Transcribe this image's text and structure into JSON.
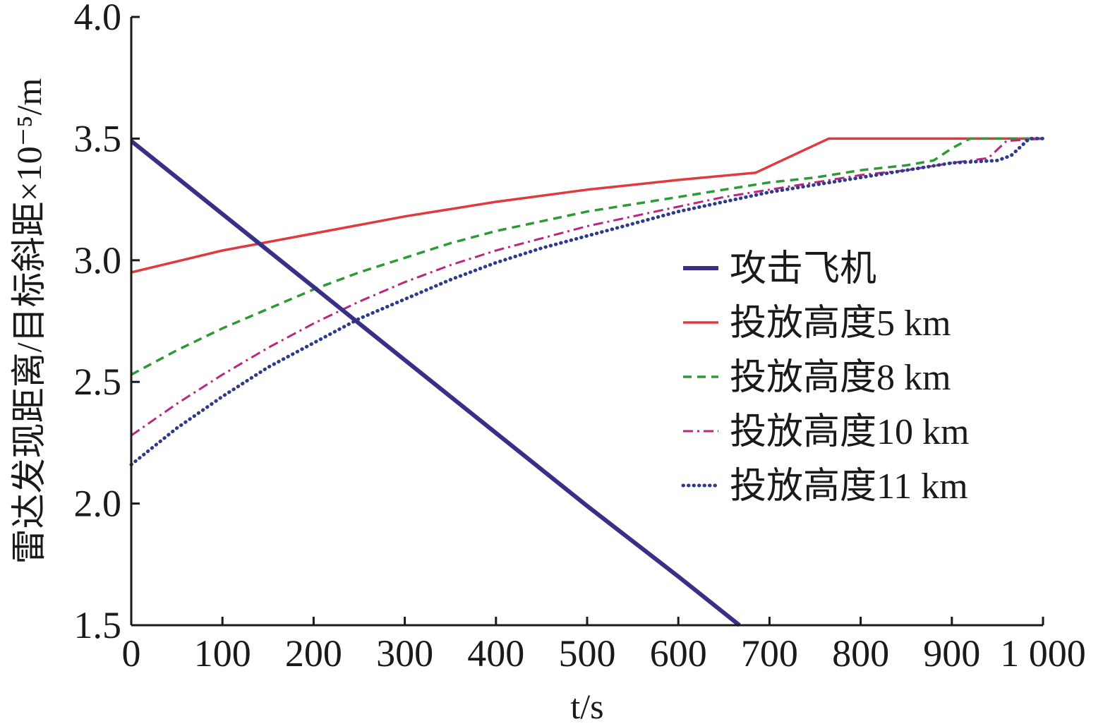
{
  "chart_data": {
    "type": "line",
    "xlabel": "t/s",
    "ylabel": "雷达发现距离/目标斜距×10⁻⁵/m",
    "xlim": [
      0,
      1000
    ],
    "ylim": [
      1.5,
      4.0
    ],
    "x_ticks": [
      0,
      100,
      200,
      300,
      400,
      500,
      600,
      700,
      800,
      900,
      1000
    ],
    "x_tick_labels": [
      "0",
      "100",
      "200",
      "300",
      "400",
      "500",
      "600",
      "700",
      "800",
      "900",
      "1 000"
    ],
    "y_ticks": [
      1.5,
      2.0,
      2.5,
      3.0,
      3.5,
      4.0
    ],
    "y_tick_labels": [
      "1.5",
      "2.0",
      "2.5",
      "3.0",
      "3.5",
      "4.0"
    ],
    "grid": false,
    "legend_position": "right",
    "series": [
      {
        "name": "攻击飞机",
        "color": "#3a2f86",
        "style": "solid-thick",
        "x": [
          0,
          100,
          200,
          300,
          400,
          500,
          600,
          667
        ],
        "y": [
          3.49,
          3.19,
          2.89,
          2.59,
          2.29,
          1.99,
          1.7,
          1.5
        ]
      },
      {
        "name": "投放高度5 km",
        "color": "#e03a3e",
        "style": "solid",
        "x": [
          0,
          100,
          200,
          300,
          400,
          500,
          600,
          685,
          765,
          1000
        ],
        "y": [
          2.95,
          3.04,
          3.11,
          3.18,
          3.24,
          3.29,
          3.33,
          3.36,
          3.5,
          3.5
        ]
      },
      {
        "name": "投放高度8 km",
        "color": "#2e9a36",
        "style": "dashed",
        "x": [
          0,
          50,
          100,
          150,
          200,
          250,
          300,
          350,
          400,
          450,
          500,
          550,
          600,
          650,
          700,
          750,
          800,
          850,
          880,
          900,
          920,
          1000
        ],
        "y": [
          2.53,
          2.63,
          2.72,
          2.8,
          2.88,
          2.95,
          3.01,
          3.07,
          3.12,
          3.16,
          3.2,
          3.23,
          3.26,
          3.29,
          3.32,
          3.34,
          3.37,
          3.39,
          3.41,
          3.46,
          3.5,
          3.5
        ]
      },
      {
        "name": "投放高度10 km",
        "color": "#b8287f",
        "style": "dash-dot",
        "x": [
          0,
          50,
          100,
          150,
          200,
          250,
          300,
          350,
          400,
          450,
          500,
          550,
          600,
          650,
          700,
          750,
          800,
          850,
          900,
          940,
          960,
          1000
        ],
        "y": [
          2.28,
          2.41,
          2.53,
          2.64,
          2.74,
          2.83,
          2.91,
          2.98,
          3.04,
          3.09,
          3.14,
          3.18,
          3.22,
          3.26,
          3.29,
          3.32,
          3.35,
          3.37,
          3.4,
          3.42,
          3.49,
          3.5
        ]
      },
      {
        "name": "投放高度11 km",
        "color": "#2f3a8e",
        "style": "dotted",
        "x": [
          0,
          50,
          100,
          150,
          200,
          250,
          300,
          350,
          400,
          450,
          500,
          550,
          600,
          650,
          700,
          750,
          800,
          850,
          900,
          950,
          965,
          985,
          1000
        ],
        "y": [
          2.16,
          2.31,
          2.44,
          2.56,
          2.66,
          2.76,
          2.84,
          2.92,
          2.99,
          3.05,
          3.1,
          3.15,
          3.2,
          3.24,
          3.28,
          3.31,
          3.34,
          3.37,
          3.4,
          3.41,
          3.43,
          3.5,
          3.5
        ]
      }
    ]
  }
}
